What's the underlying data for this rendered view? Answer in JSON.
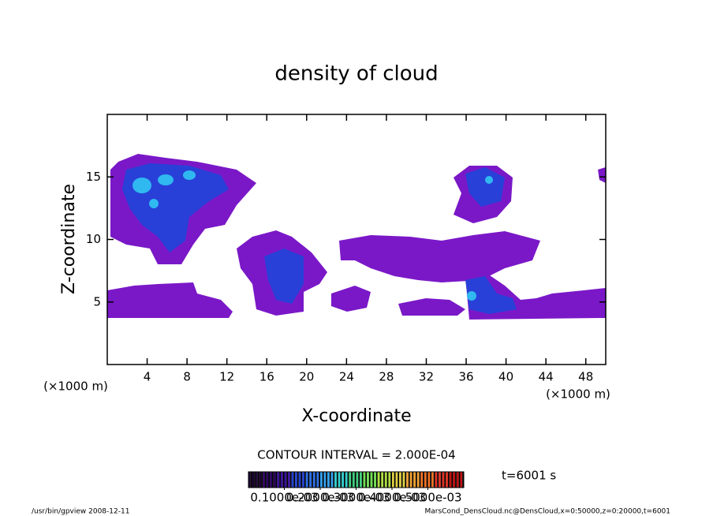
{
  "chart_data": {
    "type": "contour",
    "title": "density of cloud",
    "x_label": "X-coordinate",
    "y_label": "Z-coordinate",
    "x_units": "(×1000 m)",
    "y_units": "(×1000 m)",
    "xlim": [
      0,
      50
    ],
    "ylim": [
      0,
      20
    ],
    "xticks": [
      4,
      8,
      12,
      16,
      20,
      24,
      28,
      32,
      36,
      40,
      44,
      48
    ],
    "yticks": [
      5,
      10,
      15
    ],
    "contour_interval": "CONTOUR INTERVAL = 2.000E-04",
    "time_label": "t=6001 s",
    "colorbar": {
      "clim": [
        0,
        0.0006
      ],
      "colors": [
        "#1a0030",
        "#2a0060",
        "#3a10a0",
        "#2040d0",
        "#2a70e8",
        "#30a0f0",
        "#30d0d0",
        "#40d080",
        "#70e050",
        "#b0e040",
        "#e0d040",
        "#f0a030",
        "#f07020",
        "#e03020",
        "#c01010"
      ],
      "ticks": [
        {
          "value": 0.0001,
          "label": "0.1000e-03"
        },
        {
          "value": 0.0002,
          "label": "0.2000e-03"
        },
        {
          "value": 0.0003,
          "label": "0.3000e-03"
        },
        {
          "value": 0.0004,
          "label": "0.4000e-03"
        },
        {
          "value": 0.0005,
          "label": "0.5000e-03"
        }
      ]
    },
    "footer_left": "/usr/bin/gpview   2008-12-11",
    "footer_right": "MarsCond_DensCloud.nc@DensCloud,x=0:50000,z=0:20000,t=6001"
  }
}
